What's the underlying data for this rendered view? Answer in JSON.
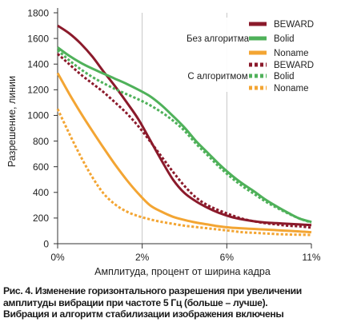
{
  "chart_data": {
    "type": "line",
    "title": "",
    "xlabel": "Амплитуда, процент от ширина кадра",
    "ylabel": "Разрешение, линии",
    "x_tick_labels": [
      "0%",
      "2%",
      "6%",
      "11%"
    ],
    "x": [
      0,
      0.5,
      1,
      1.5,
      2,
      2.5,
      3,
      3.5,
      4,
      4.5,
      5,
      5.5,
      6,
      6.5,
      7,
      7.5,
      8,
      8.5,
      9,
      9.5,
      10,
      10.5,
      11
    ],
    "ylim": [
      0,
      1800
    ],
    "yticks": [
      0,
      200,
      400,
      600,
      800,
      1000,
      1200,
      1400,
      1600,
      1800
    ],
    "grid": "vertical",
    "legend_groups": [
      {
        "title": "Без алгоритма",
        "style": "solid",
        "entries": [
          "BEWARD",
          "Bolid",
          "Noname"
        ]
      },
      {
        "title": "С алгоритмом",
        "style": "dotted",
        "entries": [
          "BEWARD",
          "Bolid",
          "Noname"
        ]
      }
    ],
    "series": [
      {
        "name": "BEWARD",
        "group": "Без алгоритма",
        "color": "#8b1a2b",
        "style": "solid",
        "values": [
          1700,
          1640,
          1560,
          1460,
          1340,
          1225,
          1100,
          970,
          810,
          650,
          500,
          395,
          330,
          280,
          240,
          210,
          190,
          175,
          165,
          160,
          155,
          150,
          145
        ]
      },
      {
        "name": "Bolid",
        "group": "Без алгоритма",
        "color": "#4fb15a",
        "style": "solid",
        "values": [
          1530,
          1465,
          1410,
          1365,
          1325,
          1285,
          1245,
          1200,
          1150,
          1080,
          995,
          905,
          800,
          710,
          620,
          540,
          470,
          410,
          345,
          290,
          240,
          195,
          170
        ]
      },
      {
        "name": "Noname",
        "group": "Без алгоритма",
        "color": "#f3a533",
        "style": "solid",
        "values": [
          1330,
          1170,
          1020,
          880,
          745,
          615,
          495,
          390,
          300,
          250,
          210,
          185,
          165,
          150,
          135,
          125,
          120,
          115,
          110,
          105,
          100,
          95,
          90
        ]
      },
      {
        "name": "BEWARD",
        "group": "С алгоритмом",
        "color": "#8b1a2b",
        "style": "dotted",
        "values": [
          1480,
          1400,
          1320,
          1250,
          1180,
          1100,
          1015,
          915,
          800,
          680,
          560,
          450,
          360,
          300,
          260,
          225,
          195,
          175,
          160,
          150,
          140,
          135,
          125
        ]
      },
      {
        "name": "Bolid",
        "group": "С алгоритмом",
        "color": "#4fb15a",
        "style": "dotted",
        "values": [
          1510,
          1430,
          1360,
          1300,
          1250,
          1205,
          1165,
          1125,
          1080,
          1025,
          960,
          880,
          780,
          690,
          600,
          520,
          450,
          390,
          330,
          280,
          235,
          195,
          165
        ]
      },
      {
        "name": "Noname",
        "group": "С алгоритмом",
        "color": "#f3a533",
        "style": "dotted",
        "values": [
          1050,
          860,
          680,
          520,
          390,
          305,
          250,
          215,
          190,
          170,
          155,
          140,
          130,
          120,
          110,
          100,
          90,
          85,
          80,
          75,
          72,
          70,
          68
        ]
      }
    ]
  },
  "caption": {
    "line1": "Рис. 4. Изменение горизонтального разрешения при увеличении",
    "line2": "амплитуды вибрации при частоте 5 Гц (больше – лучше).",
    "line3": "Вибрация и алгоритм стабилизации изображения включены"
  }
}
